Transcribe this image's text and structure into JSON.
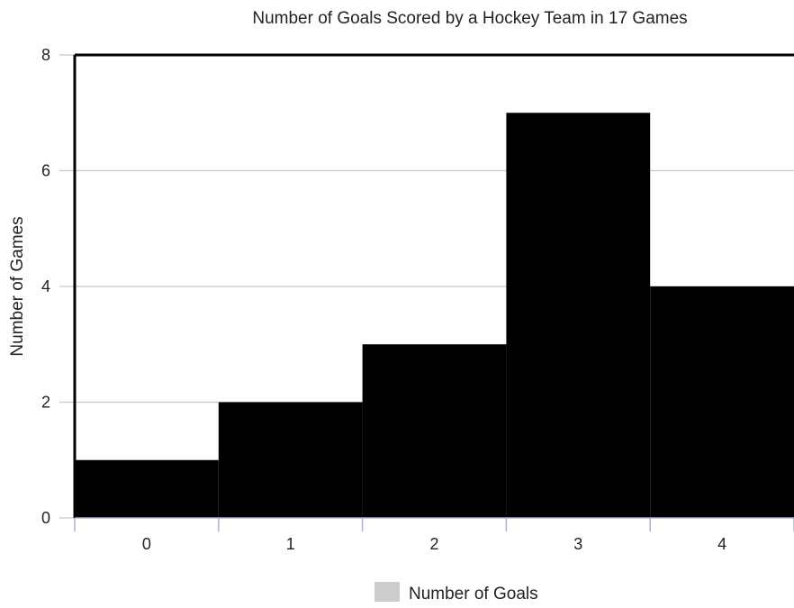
{
  "chart_data": {
    "type": "bar",
    "title": "Number of Goals Scored by a Hockey Team in 17 Games",
    "xlabel": "",
    "ylabel": "Number of Games",
    "categories": [
      "0",
      "1",
      "2",
      "3",
      "4"
    ],
    "series": [
      {
        "name": "Number of Goals",
        "values": [
          1,
          2,
          3,
          7,
          4
        ]
      }
    ],
    "ylim": [
      0,
      8
    ],
    "yticks": [
      0,
      2,
      4,
      6,
      8
    ],
    "grid": true,
    "legend": "bottom",
    "bar_color": "#000000",
    "legend_swatch_color": "#cccccc",
    "grid_color": "#c8c8c8"
  }
}
